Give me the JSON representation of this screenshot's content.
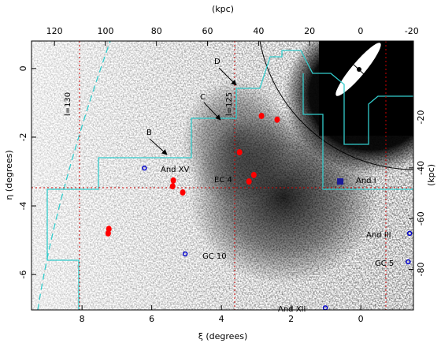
{
  "chart_data": {
    "type": "scatter",
    "x_label": "ξ (degrees)",
    "y_label": "η (degrees)",
    "x2_label": "(kpc)",
    "y2_label": "(kpc)",
    "xlim": [
      9.45,
      -1.51
    ],
    "xticks": [
      8,
      6,
      4,
      2,
      0
    ],
    "ylim": [
      -7.03,
      0.8
    ],
    "yticks": [
      0,
      -2,
      -4,
      -6
    ],
    "x2lim": [
      129,
      -20.7
    ],
    "x2ticks": [
      120,
      100,
      80,
      60,
      40,
      20,
      0,
      -20
    ],
    "y2lim": [
      -96,
      10
    ],
    "y2ticks": [
      -20,
      -40,
      -60,
      -80
    ],
    "series": [
      {
        "color": "#ff0000",
        "marker": "dot",
        "x": [
          2.85,
          2.4,
          3.48,
          5.38,
          5.4,
          5.11,
          3.07,
          3.21,
          7.23,
          7.25
        ],
        "values": [
          -1.38,
          -1.49,
          -2.44,
          -3.26,
          -3.43,
          -3.61,
          -3.1,
          -3.29,
          -4.67,
          -4.8
        ]
      },
      {
        "color": "#0000cc",
        "marker": "circle",
        "x": [
          6.21,
          5.04,
          -1.36,
          1.02,
          -1.4
        ],
        "values": [
          -2.9,
          -5.4,
          -5.63,
          -6.97,
          -4.8
        ]
      },
      {
        "color": "#1a1a99",
        "marker": "square",
        "x": [
          0.59
        ],
        "values": [
          -3.29
        ]
      }
    ],
    "annotations": [
      "And XV",
      "EC 4",
      "GC 10",
      "And III",
      "GC 5",
      "And XII",
      "And I",
      "B",
      "C",
      "D",
      "l=130",
      "l=125"
    ]
  }
}
